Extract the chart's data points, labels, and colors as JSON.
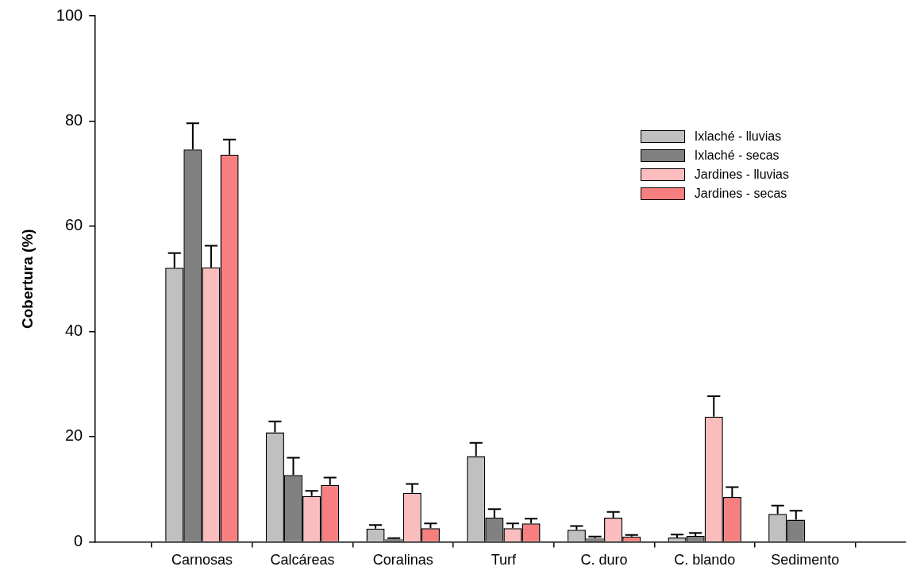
{
  "chart_data": {
    "type": "bar",
    "ylabel": "Cobertura (%)",
    "categories": [
      "Carnosas",
      "Calcáreas",
      "Coralinas",
      "Turf",
      "C. duro",
      "C. blando",
      "Sedimento"
    ],
    "ylim": [
      0,
      100
    ],
    "yticks": [
      0,
      20,
      40,
      60,
      80,
      100
    ],
    "grid": false,
    "legend": "top right",
    "series": [
      {
        "name": "Ixlaché - lluvias",
        "color": "#c0c0c0",
        "values": [
          52.1,
          20.8,
          2.5,
          16.3,
          2.3,
          0.8,
          5.3
        ],
        "errors": [
          [
            52.1,
            54.9
          ],
          [
            20.8,
            22.9
          ],
          [
            2.5,
            3.2
          ],
          [
            16.3,
            18.8
          ],
          [
            2.3,
            3.0
          ],
          [
            0.8,
            1.4
          ],
          [
            5.3,
            6.9
          ]
        ]
      },
      {
        "name": "Ixlaché - secas",
        "color": "#808080",
        "values": [
          74.6,
          12.7,
          0.5,
          4.6,
          0.7,
          1.1,
          4.2
        ],
        "errors": [
          [
            74.6,
            79.6
          ],
          [
            12.7,
            16.0
          ],
          [
            0.5,
            0.7
          ],
          [
            4.6,
            6.2
          ],
          [
            0.7,
            1.0
          ],
          [
            1.1,
            1.7
          ],
          [
            4.2,
            5.9
          ]
        ]
      },
      {
        "name": "Jardines - lluvias",
        "color": "#fbbcbe",
        "values": [
          52.2,
          8.7,
          9.3,
          2.6,
          4.6,
          23.8,
          null
        ],
        "errors": [
          [
            52.2,
            56.3
          ],
          [
            8.7,
            9.7
          ],
          [
            9.3,
            11.0
          ],
          [
            2.6,
            3.5
          ],
          [
            4.6,
            5.7
          ],
          [
            23.8,
            27.7
          ],
          null
        ]
      },
      {
        "name": "Jardines - secas",
        "color": "#f87f80",
        "values": [
          73.6,
          10.8,
          2.6,
          3.5,
          1.0,
          8.5,
          0
        ],
        "errors": [
          [
            73.6,
            76.5
          ],
          [
            10.8,
            12.2
          ],
          [
            2.6,
            3.5
          ],
          [
            3.5,
            4.4
          ],
          [
            1.0,
            1.3
          ],
          [
            8.5,
            10.4
          ],
          null
        ]
      }
    ]
  }
}
